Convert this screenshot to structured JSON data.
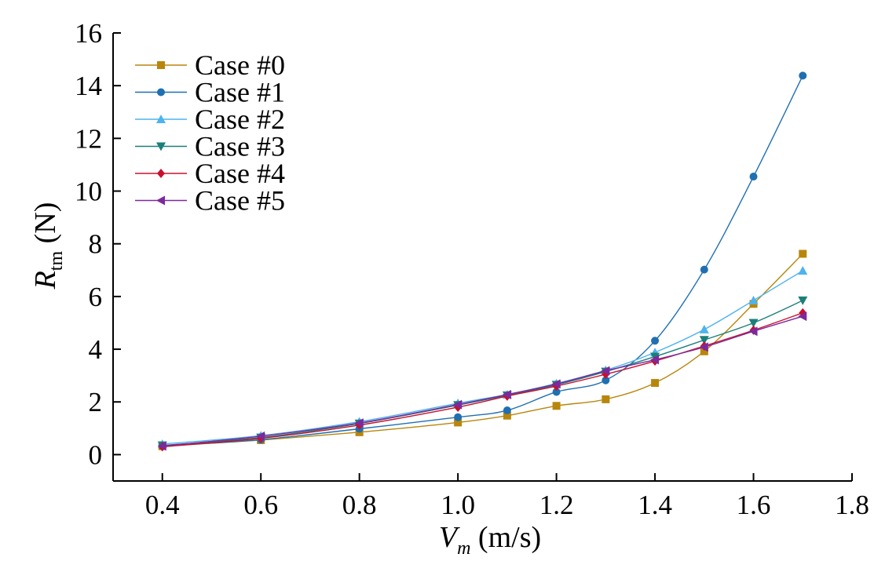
{
  "chart_data": {
    "type": "line",
    "title": "",
    "xlabel": {
      "main": "V",
      "sub": "m",
      "unit": "(m/s)"
    },
    "ylabel": {
      "main": "R",
      "sub": "tm",
      "unit": "(N)"
    },
    "xlim": [
      0.3,
      1.8
    ],
    "ylim": [
      -1,
      16
    ],
    "xticks": [
      0.4,
      0.6,
      0.8,
      1.0,
      1.2,
      1.4,
      1.6,
      1.8
    ],
    "xtick_labels": [
      "0.4",
      "0.6",
      "0.8",
      "1.0",
      "1.2",
      "1.4",
      "1.6",
      "1.8"
    ],
    "yticks": [
      0,
      2,
      4,
      6,
      8,
      10,
      12,
      14,
      16
    ],
    "ytick_labels": [
      "0",
      "2",
      "4",
      "6",
      "8",
      "10",
      "12",
      "14",
      "16"
    ],
    "grid": false,
    "legend_position": "top-left",
    "x": [
      0.4,
      0.6,
      0.8,
      1.0,
      1.1,
      1.2,
      1.3,
      1.4,
      1.5,
      1.6,
      1.7
    ],
    "series": [
      {
        "name": "Case #0",
        "color": "#B8860B",
        "marker": "square",
        "values": [
          0.32,
          0.55,
          0.85,
          1.22,
          1.48,
          1.85,
          2.1,
          2.72,
          3.92,
          5.72,
          7.62
        ]
      },
      {
        "name": "Case #1",
        "color": "#1F6FB2",
        "marker": "circle",
        "values": [
          0.33,
          0.57,
          0.98,
          1.42,
          1.68,
          2.38,
          2.82,
          4.32,
          7.02,
          10.55,
          14.38
        ]
      },
      {
        "name": "Case #2",
        "color": "#4DB3EE",
        "marker": "triangle-up",
        "values": [
          0.4,
          0.72,
          1.25,
          1.95,
          2.28,
          2.7,
          3.2,
          3.88,
          4.75,
          5.85,
          6.98
        ]
      },
      {
        "name": "Case #3",
        "color": "#1B7F7A",
        "marker": "triangle-down",
        "values": [
          0.35,
          0.65,
          1.18,
          1.88,
          2.25,
          2.65,
          3.15,
          3.72,
          4.35,
          5.0,
          5.85
        ]
      },
      {
        "name": "Case #4",
        "color": "#C8102E",
        "marker": "diamond",
        "values": [
          0.3,
          0.62,
          1.12,
          1.8,
          2.22,
          2.6,
          3.05,
          3.55,
          4.12,
          4.72,
          5.38
        ]
      },
      {
        "name": "Case #5",
        "color": "#7B2A9E",
        "marker": "triangle-left",
        "values": [
          0.33,
          0.7,
          1.2,
          1.9,
          2.28,
          2.68,
          3.18,
          3.6,
          4.08,
          4.68,
          5.25
        ]
      }
    ]
  }
}
